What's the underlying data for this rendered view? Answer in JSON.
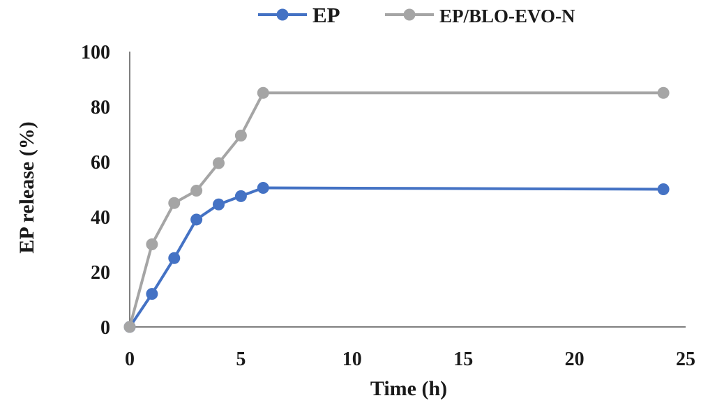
{
  "chart_data": {
    "type": "line",
    "xlabel": "Time (h)",
    "ylabel": "EP release (%)",
    "xlim": [
      0,
      25
    ],
    "ylim": [
      0,
      100
    ],
    "xticks": [
      0,
      5,
      10,
      15,
      20,
      25
    ],
    "yticks": [
      0,
      20,
      40,
      60,
      80,
      100
    ],
    "grid": false,
    "legend_position": "top",
    "series": [
      {
        "name": "EP",
        "color": "#4472c4",
        "x": [
          0,
          1,
          2,
          3,
          4,
          5,
          6,
          24
        ],
        "y": [
          0,
          12,
          25,
          39,
          44.5,
          47.5,
          50.5,
          50
        ]
      },
      {
        "name": "EP/BLO-EVO-N",
        "color": "#a5a5a5",
        "x": [
          0,
          1,
          2,
          3,
          4,
          5,
          6,
          24
        ],
        "y": [
          0,
          30,
          45,
          49.5,
          59.5,
          69.5,
          85,
          85
        ]
      }
    ]
  }
}
